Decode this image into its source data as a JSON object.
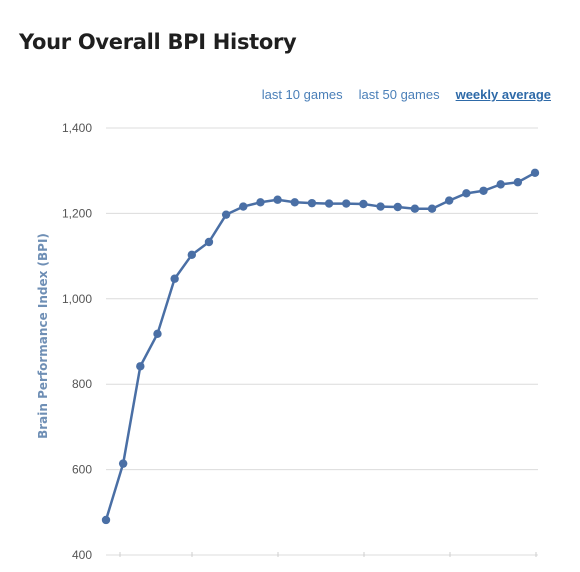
{
  "page": {
    "title": "Your Overall BPI History"
  },
  "range_tabs": [
    {
      "label": "last 10 games",
      "active": false
    },
    {
      "label": "last 50 games",
      "active": false
    },
    {
      "label": "weekly average",
      "active": true
    }
  ],
  "colors": {
    "line": "#4a6fa5",
    "grid": "#dcdcdc",
    "link": "#4a7fb8",
    "axis_title": "#6f8fb5"
  },
  "chart_data": {
    "type": "line",
    "title": "",
    "xlabel": "",
    "ylabel": "Brain Performance Index (BPI)",
    "ylim": [
      400,
      1400
    ],
    "yticks": [
      400,
      600,
      800,
      1000,
      1200,
      1400
    ],
    "ytick_labels": [
      "400",
      "600",
      "800",
      "1,000",
      "1,200",
      "1,400"
    ],
    "grid": true,
    "series": [
      {
        "values": [
          482,
          614,
          842,
          918,
          1047,
          1103,
          1133,
          1197,
          1216,
          1226,
          1232,
          1226,
          1224,
          1223,
          1223,
          1222,
          1216,
          1215,
          1211,
          1211,
          1230,
          1247,
          1253,
          1268,
          1273,
          1295
        ]
      }
    ]
  }
}
